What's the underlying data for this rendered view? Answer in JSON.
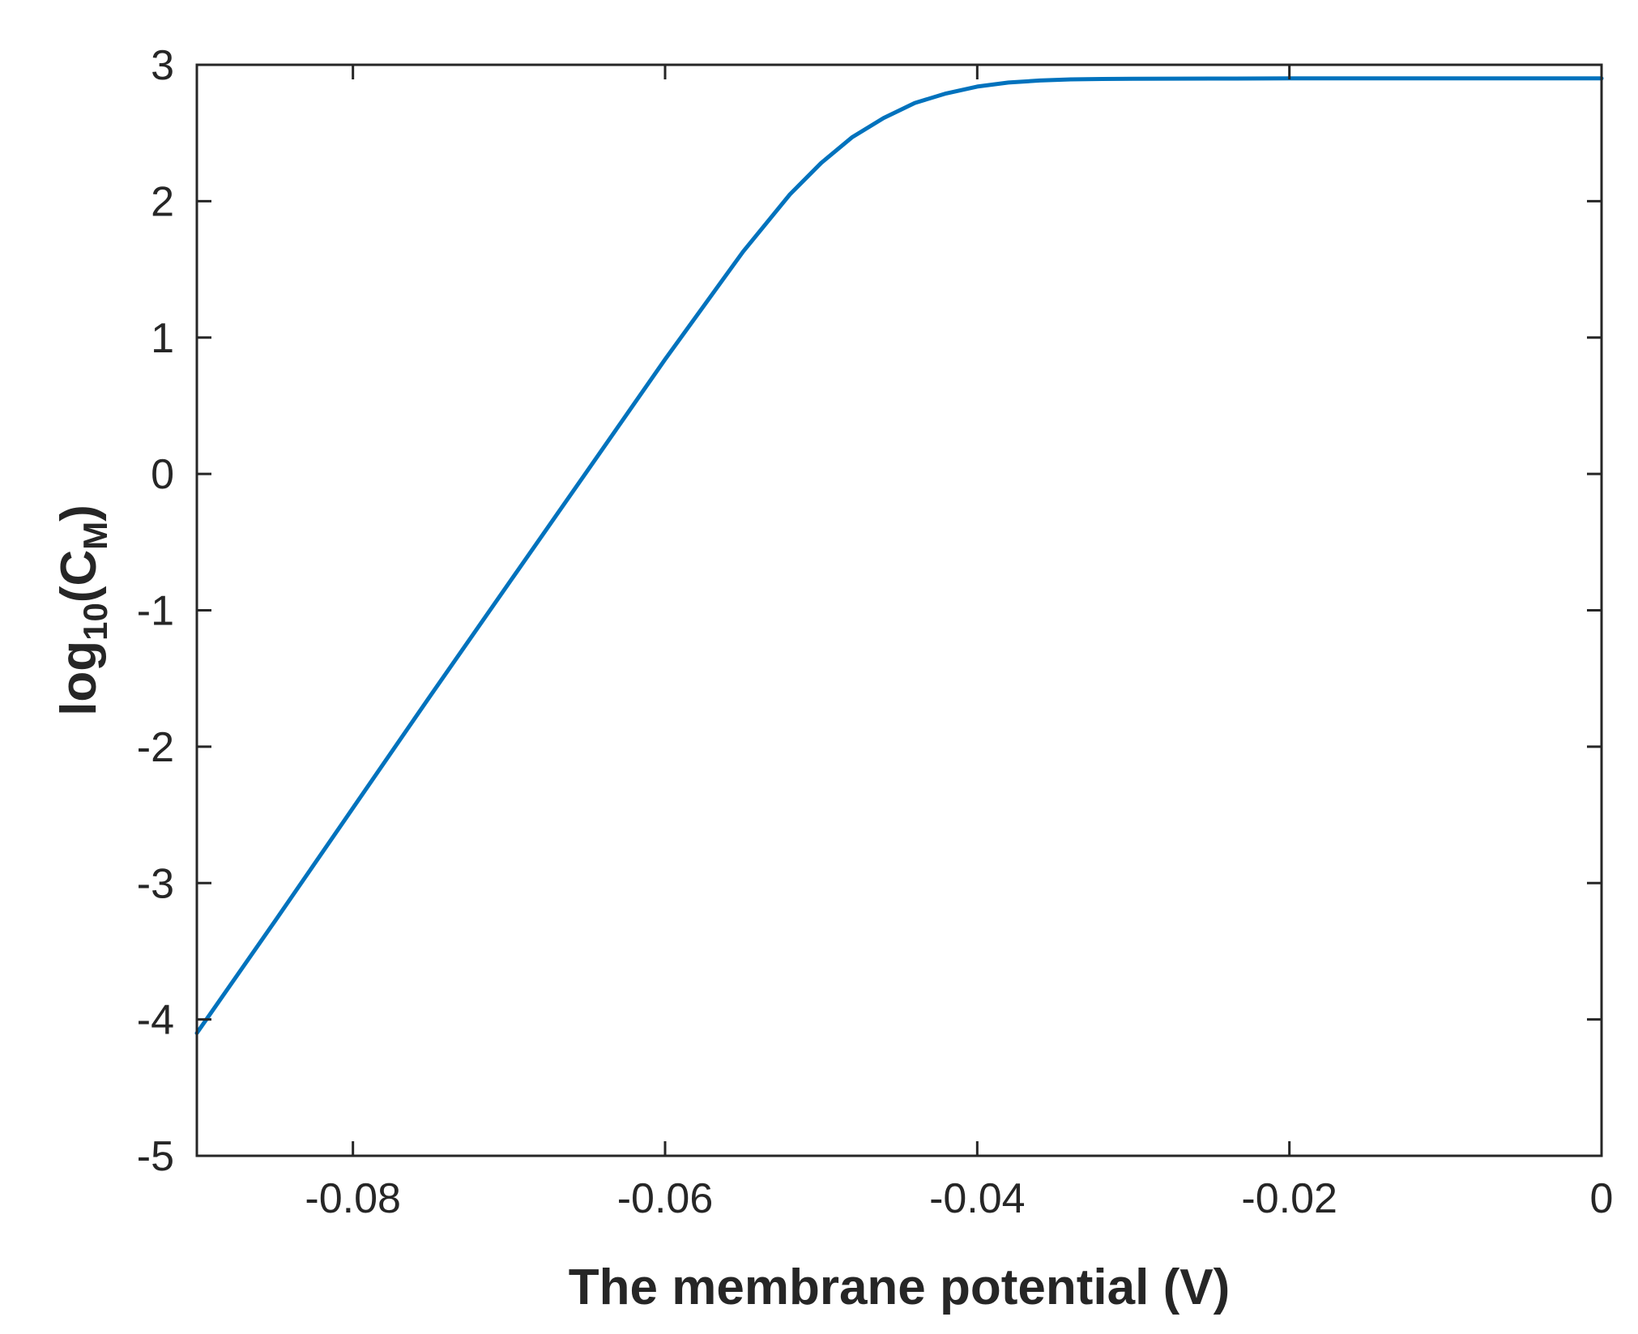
{
  "chart_data": {
    "type": "line",
    "title": "",
    "xlabel": "The membrane potential (V)",
    "ylabel": {
      "prefix": "log",
      "prefix_sub": "10",
      "open": "(C",
      "sub": "M",
      "close": ")"
    },
    "xlim": [
      -0.09,
      0
    ],
    "ylim": [
      -5,
      3
    ],
    "xticks": [
      {
        "value": -0.08,
        "label": "-0.08"
      },
      {
        "value": -0.06,
        "label": "-0.06"
      },
      {
        "value": -0.04,
        "label": "-0.04"
      },
      {
        "value": -0.02,
        "label": "-0.02"
      },
      {
        "value": 0,
        "label": "0"
      }
    ],
    "yticks": [
      {
        "value": 3,
        "label": "3"
      },
      {
        "value": 2,
        "label": "2"
      },
      {
        "value": 1,
        "label": "1"
      },
      {
        "value": 0,
        "label": "0"
      },
      {
        "value": -1,
        "label": "-1"
      },
      {
        "value": -2,
        "label": "-2"
      },
      {
        "value": -3,
        "label": "-3"
      },
      {
        "value": -4,
        "label": "-4"
      },
      {
        "value": -5,
        "label": "-5"
      }
    ],
    "grid": false,
    "box": true,
    "line_color": "#0072BD",
    "axis_color": "#262626",
    "series": [
      {
        "x": [
          -0.09,
          -0.085,
          -0.08,
          -0.075,
          -0.07,
          -0.065,
          -0.06,
          -0.055,
          -0.052,
          -0.05,
          -0.048,
          -0.046,
          -0.044,
          -0.042,
          -0.04,
          -0.038,
          -0.036,
          -0.034,
          -0.032,
          -0.03,
          -0.025,
          -0.02,
          -0.01,
          0
        ],
        "y": [
          -4.1,
          -3.28,
          -2.45,
          -1.62,
          -0.8,
          0.02,
          0.84,
          1.63,
          2.05,
          2.28,
          2.47,
          2.61,
          2.72,
          2.79,
          2.84,
          2.87,
          2.885,
          2.893,
          2.896,
          2.898,
          2.899,
          2.9,
          2.9,
          2.9
        ]
      }
    ]
  }
}
